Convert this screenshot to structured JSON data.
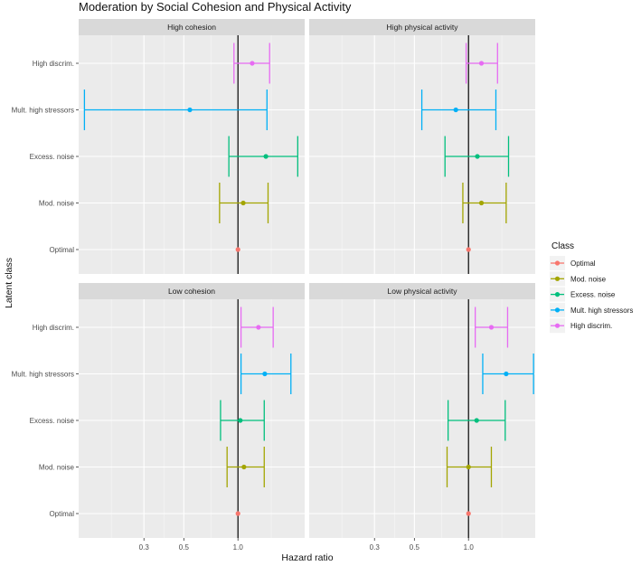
{
  "chart_data": {
    "type": "forest",
    "title": "Moderation by Social Cohesion and Physical Activity",
    "xlabel": "Hazard ratio",
    "ylabel": "Latent class",
    "x_scale": "log",
    "xlim": [
      0.13,
      2.35
    ],
    "x_ticks": [
      0.3,
      0.5,
      1.0
    ],
    "x_tick_labels": [
      "0.3",
      "0.5",
      "1.0"
    ],
    "reference_x": 1.0,
    "categories": [
      "High discrim.",
      "Mult. high stressors",
      "Excess. noise",
      "Mod. noise",
      "Optimal"
    ],
    "panels": [
      {
        "label": "High cohesion",
        "points": [
          {
            "class": "High discrim.",
            "estimate": 1.2,
            "lower": 0.95,
            "upper": 1.5
          },
          {
            "class": "Mult. high stressors",
            "estimate": 0.54,
            "lower": 0.14,
            "upper": 1.45
          },
          {
            "class": "Excess. noise",
            "estimate": 1.43,
            "lower": 0.89,
            "upper": 2.15
          },
          {
            "class": "Mod. noise",
            "estimate": 1.07,
            "lower": 0.79,
            "upper": 1.47
          },
          {
            "class": "Optimal",
            "estimate": 1.0,
            "lower": 1.0,
            "upper": 1.0
          }
        ]
      },
      {
        "label": "High physical activity",
        "points": [
          {
            "class": "High discrim.",
            "estimate": 1.18,
            "lower": 0.97,
            "upper": 1.45
          },
          {
            "class": "Mult. high stressors",
            "estimate": 0.85,
            "lower": 0.55,
            "upper": 1.42
          },
          {
            "class": "Excess. noise",
            "estimate": 1.12,
            "lower": 0.74,
            "upper": 1.67
          },
          {
            "class": "Mod. noise",
            "estimate": 1.18,
            "lower": 0.93,
            "upper": 1.62
          },
          {
            "class": "Optimal",
            "estimate": 1.0,
            "lower": 1.0,
            "upper": 1.0
          }
        ]
      },
      {
        "label": "Low cohesion",
        "points": [
          {
            "class": "High discrim.",
            "estimate": 1.3,
            "lower": 1.04,
            "upper": 1.57
          },
          {
            "class": "Mult. high stressors",
            "estimate": 1.41,
            "lower": 1.04,
            "upper": 1.97
          },
          {
            "class": "Excess. noise",
            "estimate": 1.03,
            "lower": 0.8,
            "upper": 1.4
          },
          {
            "class": "Mod. noise",
            "estimate": 1.08,
            "lower": 0.87,
            "upper": 1.4
          },
          {
            "class": "Optimal",
            "estimate": 1.0,
            "lower": 1.0,
            "upper": 1.0
          }
        ]
      },
      {
        "label": "Low physical activity",
        "points": [
          {
            "class": "High discrim.",
            "estimate": 1.34,
            "lower": 1.09,
            "upper": 1.65
          },
          {
            "class": "Mult. high stressors",
            "estimate": 1.62,
            "lower": 1.2,
            "upper": 2.3
          },
          {
            "class": "Excess. noise",
            "estimate": 1.11,
            "lower": 0.77,
            "upper": 1.6
          },
          {
            "class": "Mod. noise",
            "estimate": 1.0,
            "lower": 0.76,
            "upper": 1.34
          },
          {
            "class": "Optimal",
            "estimate": 1.0,
            "lower": 1.0,
            "upper": 1.0
          }
        ]
      }
    ],
    "legend": {
      "title": "Class",
      "position": "right",
      "entries": [
        "Optimal",
        "Mod. noise",
        "Excess. noise",
        "Mult. high stressors",
        "High discrim."
      ]
    }
  },
  "colors": {
    "Optimal": "#F8766D",
    "Mod. noise": "#A3A500",
    "Excess. noise": "#00BF7D",
    "Mult. high stressors": "#00B0F6",
    "High discrim.": "#E76BF3"
  }
}
